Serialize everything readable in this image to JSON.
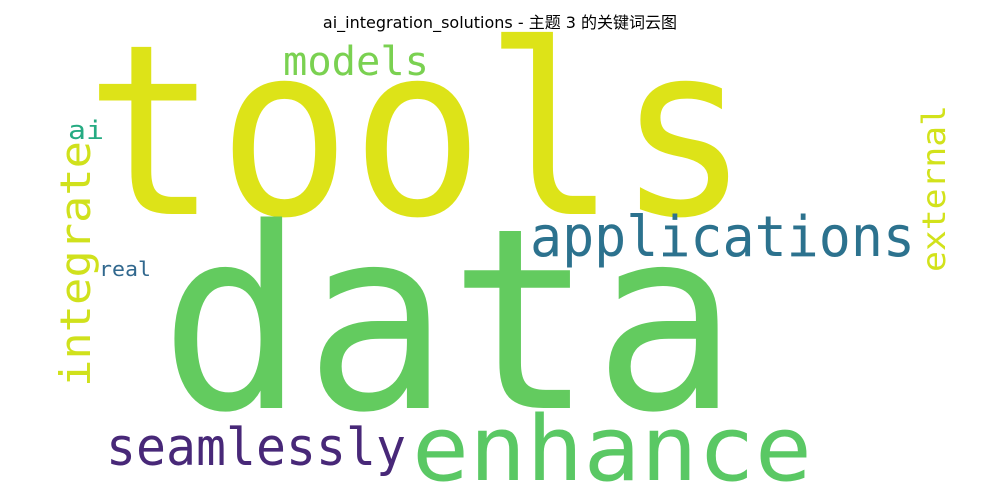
{
  "title": "ai_integration_solutions - 主题 3 的关键词云图",
  "words": [
    {
      "text": "tools",
      "color": "#dde318",
      "orientation": "horizontal"
    },
    {
      "text": "data",
      "color": "#63cb5f",
      "orientation": "horizontal"
    },
    {
      "text": "enhance",
      "color": "#5ac864",
      "orientation": "horizontal"
    },
    {
      "text": "applications",
      "color": "#2c728e",
      "orientation": "horizontal"
    },
    {
      "text": "seamlessly",
      "color": "#482878",
      "orientation": "horizontal"
    },
    {
      "text": "models",
      "color": "#7ad151",
      "orientation": "horizontal"
    },
    {
      "text": "integrate",
      "color": "#d0e11c",
      "orientation": "vertical"
    },
    {
      "text": "external",
      "color": "#d2e21b",
      "orientation": "vertical"
    },
    {
      "text": "ai",
      "color": "#25ab82",
      "orientation": "horizontal"
    },
    {
      "text": "real",
      "color": "#31688e",
      "orientation": "horizontal"
    }
  ]
}
